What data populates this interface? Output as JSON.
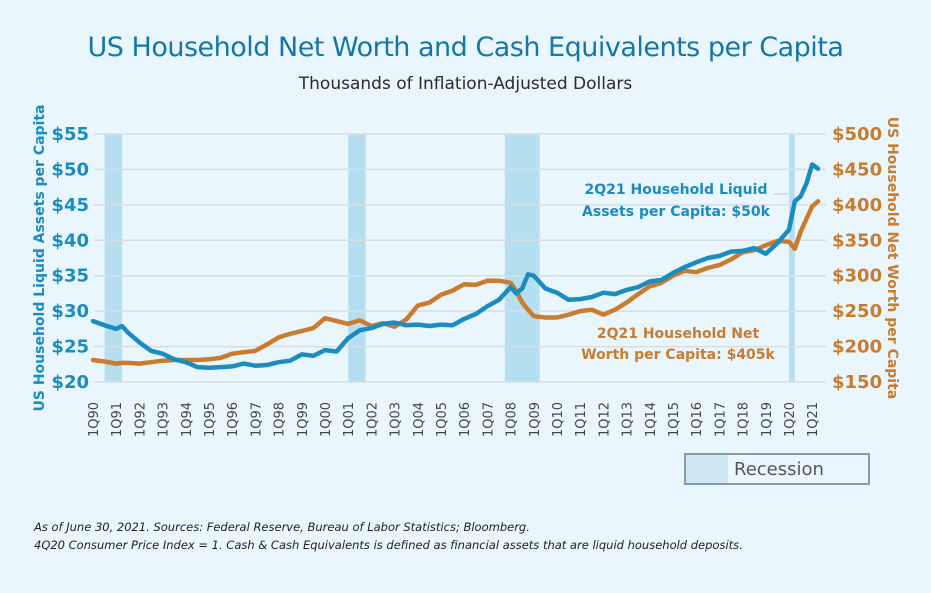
{
  "title": "US Household Net Worth and Cash Equivalents per Capita",
  "subtitle": "Thousands of Inflation-Adjusted Dollars",
  "legend": {
    "recession_label": "Recession"
  },
  "footnotes": [
    "As of June 30, 2021. Sources: Federal Reserve, Bureau of Labor Statistics; Bloomberg.",
    "4Q20 Consumer Price Index = 1. Cash & Cash Equivalents is defined as financial assets that are liquid household deposits."
  ],
  "colors": {
    "liquid": "#1a8cc0",
    "networth": "#c97b2e",
    "recession": "#b5dff0",
    "grid": "#d7dde1",
    "title": "#1477a8"
  },
  "chart_data": {
    "type": "line",
    "title": "US Household Net Worth and Cash Equivalents per Capita",
    "subtitle": "Thousands of Inflation-Adjusted Dollars",
    "xlabel": "",
    "ylabel_left": "US Household Liquid Assets per Capita",
    "ylabel_right": "US Household Net Worth per Capita",
    "y_left": {
      "range": [
        20,
        55
      ],
      "ticks": [
        20,
        25,
        30,
        35,
        40,
        45,
        50,
        55
      ],
      "tick_labels": [
        "$20",
        "$25",
        "$30",
        "$35",
        "$40",
        "$45",
        "$50",
        "$55"
      ]
    },
    "y_right": {
      "range": [
        150,
        500
      ],
      "ticks": [
        150,
        200,
        250,
        300,
        350,
        400,
        450,
        500
      ],
      "tick_labels": [
        "$150",
        "$200",
        "$250",
        "$300",
        "$350",
        "$400",
        "$450",
        "$500"
      ]
    },
    "x_tick_labels": [
      "1Q90",
      "1Q91",
      "1Q92",
      "1Q93",
      "1Q94",
      "1Q95",
      "1Q96",
      "1Q97",
      "1Q98",
      "1Q99",
      "1Q00",
      "1Q01",
      "1Q02",
      "1Q03",
      "1Q04",
      "1Q05",
      "1Q06",
      "1Q07",
      "1Q08",
      "1Q09",
      "1Q10",
      "1Q11",
      "1Q12",
      "1Q13",
      "1Q14",
      "1Q15",
      "1Q16",
      "1Q17",
      "1Q18",
      "1Q19",
      "1Q20",
      "1Q21"
    ],
    "grid": true,
    "legend": "bottom-right",
    "recessions": [
      {
        "start": 1990.5,
        "end": 1991.25
      },
      {
        "start": 2001.0,
        "end": 2001.75
      },
      {
        "start": 2007.75,
        "end": 2009.25
      },
      {
        "start": 2020.0,
        "end": 2020.25
      }
    ],
    "x": [
      1990.0,
      1990.5,
      1991.0,
      1991.25,
      1991.5,
      1992.0,
      1992.5,
      1993.0,
      1993.5,
      1994.0,
      1994.5,
      1995.0,
      1995.5,
      1996.0,
      1996.5,
      1997.0,
      1997.5,
      1998.0,
      1998.5,
      1999.0,
      1999.5,
      2000.0,
      2000.5,
      2001.0,
      2001.5,
      2002.0,
      2002.5,
      2003.0,
      2003.5,
      2004.0,
      2004.5,
      2005.0,
      2005.5,
      2006.0,
      2006.5,
      2007.0,
      2007.5,
      2008.0,
      2008.25,
      2008.5,
      2008.75,
      2009.0,
      2009.5,
      2010.0,
      2010.5,
      2011.0,
      2011.5,
      2012.0,
      2012.5,
      2013.0,
      2013.5,
      2014.0,
      2014.5,
      2015.0,
      2015.5,
      2016.0,
      2016.5,
      2017.0,
      2017.5,
      2018.0,
      2018.5,
      2019.0,
      2019.5,
      2020.0,
      2020.25,
      2020.5,
      2020.75,
      2021.0,
      2021.25
    ],
    "series": [
      {
        "name": "2Q21 Household Liquid Assets per Capita: $50k",
        "axis": "left",
        "values": [
          28.6,
          28.0,
          27.5,
          27.9,
          27.0,
          25.6,
          24.4,
          24.0,
          23.2,
          22.8,
          22.1,
          22.0,
          22.1,
          22.2,
          22.6,
          22.3,
          22.4,
          22.8,
          23.0,
          23.9,
          23.7,
          24.5,
          24.3,
          26.2,
          27.3,
          27.6,
          28.2,
          28.4,
          28.0,
          28.1,
          27.9,
          28.1,
          28.0,
          28.9,
          29.6,
          30.7,
          31.6,
          33.4,
          32.5,
          33.2,
          35.2,
          35.0,
          33.2,
          32.6,
          31.6,
          31.7,
          32.0,
          32.6,
          32.4,
          33.0,
          33.4,
          34.2,
          34.4,
          35.4,
          36.2,
          36.9,
          37.5,
          37.8,
          38.4,
          38.5,
          38.9,
          38.1,
          39.6,
          41.5,
          45.5,
          46.2,
          48.0,
          50.7,
          50.1
        ]
      },
      {
        "name": "2Q21 Household Net Worth per Capita: $405k",
        "axis": "right",
        "values": [
          181,
          179,
          176,
          177,
          177,
          176,
          178,
          180,
          181,
          181,
          181,
          182,
          184,
          190,
          192,
          194,
          203,
          213,
          218,
          222,
          226,
          240,
          236,
          232,
          237,
          229,
          233,
          228,
          238,
          258,
          262,
          273,
          279,
          288,
          287,
          293,
          293,
          290,
          278,
          262,
          252,
          243,
          241,
          241,
          245,
          250,
          252,
          245,
          252,
          262,
          274,
          285,
          290,
          300,
          307,
          305,
          311,
          315,
          323,
          333,
          336,
          343,
          349,
          348,
          338,
          362,
          380,
          398,
          405
        ]
      }
    ]
  }
}
